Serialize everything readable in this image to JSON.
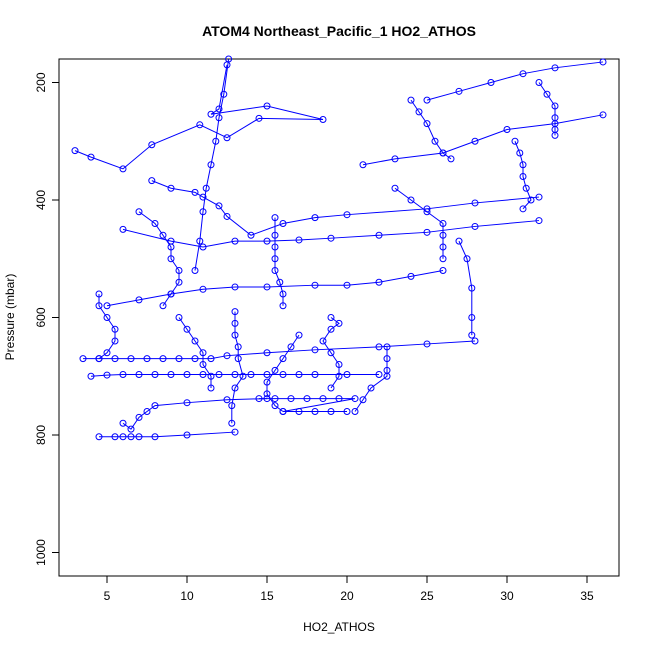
{
  "chart_data": {
    "type": "scatter",
    "title": "ATOM4 Northeast_Pacific_1 HO2_ATHOS",
    "xlabel": "HO2_ATHOS",
    "ylabel": "Pressure (mbar)",
    "xlim": [
      2,
      37
    ],
    "ylim": [
      1040,
      160
    ],
    "y_reversed": true,
    "xticks": [
      5,
      10,
      15,
      20,
      25,
      30,
      35
    ],
    "yticks": [
      200,
      400,
      600,
      800,
      1000
    ],
    "grid": false,
    "legend": "none",
    "color": "#0000ff",
    "marker": "open-circle",
    "series": [
      {
        "values": [
          [
            3.0,
            316
          ],
          [
            4.0,
            327
          ],
          [
            6.0,
            347
          ],
          [
            7.8,
            306
          ],
          [
            10.8,
            272
          ],
          [
            12.5,
            294
          ],
          [
            14.5,
            261
          ],
          [
            18.5,
            263
          ],
          [
            15.0,
            240
          ],
          [
            11.5,
            254
          ],
          [
            12.0,
            245
          ],
          [
            12.5,
            170
          ]
        ]
      },
      {
        "values": [
          [
            10.5,
            520
          ],
          [
            10.8,
            470
          ],
          [
            11.0,
            420
          ],
          [
            11.2,
            380
          ],
          [
            11.5,
            340
          ],
          [
            11.8,
            300
          ],
          [
            12.0,
            260
          ],
          [
            12.3,
            220
          ],
          [
            12.6,
            160
          ]
        ]
      },
      {
        "values": [
          [
            7.8,
            367
          ],
          [
            9.0,
            380
          ],
          [
            10.5,
            387
          ],
          [
            11.0,
            395
          ],
          [
            12.0,
            410
          ],
          [
            12.5,
            428
          ],
          [
            14.0,
            460
          ],
          [
            16.0,
            440
          ],
          [
            18.0,
            430
          ],
          [
            20.0,
            425
          ],
          [
            25.0,
            415
          ],
          [
            28.0,
            405
          ],
          [
            32.0,
            395
          ]
        ]
      },
      {
        "values": [
          [
            4.0,
            700
          ],
          [
            5.0,
            698
          ],
          [
            6.0,
            697
          ],
          [
            7.0,
            697
          ],
          [
            8.0,
            697
          ],
          [
            9.0,
            697
          ],
          [
            10.0,
            697
          ],
          [
            11.0,
            697
          ],
          [
            12.0,
            697
          ],
          [
            13.0,
            697
          ],
          [
            14.0,
            697
          ],
          [
            15.0,
            697
          ],
          [
            16.0,
            697
          ],
          [
            17.0,
            697
          ],
          [
            18.0,
            697
          ],
          [
            20.0,
            697
          ],
          [
            22.0,
            697
          ]
        ]
      },
      {
        "values": [
          [
            3.5,
            670
          ],
          [
            4.5,
            670
          ],
          [
            5.5,
            670
          ],
          [
            6.5,
            670
          ],
          [
            7.5,
            670
          ],
          [
            8.5,
            670
          ],
          [
            9.5,
            670
          ],
          [
            10.5,
            670
          ],
          [
            11.5,
            670
          ],
          [
            12.5,
            665
          ],
          [
            15.0,
            660
          ],
          [
            18.0,
            655
          ],
          [
            22.0,
            650
          ],
          [
            25.0,
            645
          ],
          [
            28.0,
            640
          ]
        ]
      },
      {
        "values": [
          [
            14.5,
            738
          ],
          [
            15.5,
            738
          ],
          [
            16.5,
            738
          ],
          [
            17.5,
            738
          ],
          [
            18.5,
            738
          ],
          [
            19.5,
            738
          ],
          [
            20.5,
            738
          ],
          [
            16.0,
            760
          ],
          [
            17.0,
            760
          ],
          [
            18.0,
            760
          ],
          [
            19.0,
            760
          ],
          [
            20.0,
            760
          ]
        ]
      },
      {
        "values": [
          [
            4.5,
            803
          ],
          [
            5.5,
            803
          ],
          [
            6.0,
            803
          ],
          [
            6.5,
            803
          ],
          [
            7.0,
            803
          ],
          [
            8.0,
            803
          ],
          [
            10.0,
            800
          ],
          [
            13.0,
            795
          ]
        ]
      },
      {
        "values": [
          [
            5.0,
            580
          ],
          [
            7.0,
            570
          ],
          [
            9.0,
            560
          ],
          [
            11.0,
            552
          ],
          [
            13.0,
            548
          ],
          [
            15.0,
            548
          ],
          [
            18.0,
            545
          ],
          [
            20.0,
            545
          ],
          [
            22.0,
            540
          ],
          [
            24.0,
            530
          ],
          [
            26.0,
            520
          ]
        ]
      },
      {
        "values": [
          [
            6.0,
            450
          ],
          [
            9.0,
            470
          ],
          [
            11.0,
            480
          ],
          [
            13.0,
            470
          ],
          [
            15.0,
            470
          ],
          [
            17.0,
            468
          ],
          [
            19.0,
            465
          ],
          [
            22.0,
            460
          ],
          [
            25.0,
            455
          ],
          [
            28.0,
            445
          ],
          [
            32.0,
            435
          ]
        ]
      },
      {
        "values": [
          [
            21.0,
            340
          ],
          [
            23.0,
            330
          ],
          [
            26.0,
            320
          ],
          [
            28.0,
            300
          ],
          [
            30.0,
            280
          ],
          [
            33.0,
            270
          ],
          [
            36.0,
            255
          ]
        ]
      },
      {
        "values": [
          [
            25.0,
            230
          ],
          [
            27.0,
            215
          ],
          [
            29.0,
            200
          ],
          [
            31.0,
            185
          ],
          [
            33.0,
            175
          ],
          [
            36.0,
            165
          ]
        ]
      },
      {
        "values": [
          [
            27.0,
            470
          ],
          [
            27.5,
            500
          ],
          [
            27.8,
            550
          ],
          [
            27.8,
            600
          ],
          [
            27.8,
            630
          ]
        ]
      },
      {
        "values": [
          [
            22.5,
            650
          ],
          [
            22.5,
            670
          ],
          [
            22.5,
            690
          ],
          [
            22.5,
            700
          ],
          [
            21.5,
            720
          ],
          [
            21.0,
            740
          ],
          [
            20.5,
            760
          ]
        ]
      },
      {
        "values": [
          [
            17.0,
            630
          ],
          [
            16.5,
            650
          ],
          [
            16.0,
            670
          ],
          [
            15.5,
            690
          ],
          [
            15.0,
            710
          ],
          [
            15.0,
            730
          ],
          [
            15.5,
            750
          ],
          [
            16.0,
            760
          ]
        ]
      },
      {
        "values": [
          [
            9.5,
            600
          ],
          [
            10.0,
            620
          ],
          [
            10.5,
            640
          ],
          [
            11.0,
            660
          ],
          [
            11.0,
            680
          ],
          [
            11.5,
            700
          ],
          [
            11.5,
            720
          ]
        ]
      },
      {
        "values": [
          [
            13.0,
            590
          ],
          [
            13.0,
            610
          ],
          [
            13.0,
            630
          ],
          [
            13.2,
            650
          ],
          [
            13.2,
            670
          ],
          [
            13.5,
            700
          ],
          [
            13.0,
            720
          ],
          [
            12.8,
            750
          ],
          [
            12.8,
            780
          ]
        ]
      },
      {
        "values": [
          [
            4.5,
            560
          ],
          [
            4.5,
            580
          ],
          [
            5.0,
            600
          ],
          [
            5.5,
            620
          ],
          [
            5.5,
            640
          ],
          [
            5.0,
            660
          ],
          [
            4.5,
            670
          ]
        ]
      },
      {
        "values": [
          [
            7.0,
            420
          ],
          [
            8.0,
            440
          ],
          [
            8.5,
            460
          ],
          [
            9.0,
            480
          ],
          [
            9.0,
            500
          ],
          [
            9.5,
            520
          ],
          [
            9.5,
            540
          ],
          [
            9.0,
            560
          ],
          [
            8.5,
            580
          ]
        ]
      },
      {
        "values": [
          [
            19.0,
            600
          ],
          [
            19.5,
            610
          ],
          [
            19.0,
            620
          ],
          [
            18.5,
            640
          ],
          [
            19.0,
            660
          ],
          [
            19.5,
            680
          ],
          [
            19.5,
            700
          ],
          [
            19.0,
            720
          ]
        ]
      },
      {
        "values": [
          [
            23.0,
            380
          ],
          [
            24.0,
            400
          ],
          [
            25.0,
            420
          ],
          [
            26.0,
            440
          ],
          [
            26.0,
            460
          ],
          [
            26.0,
            480
          ],
          [
            26.0,
            500
          ]
        ]
      },
      {
        "values": [
          [
            30.5,
            300
          ],
          [
            30.8,
            320
          ],
          [
            31.0,
            340
          ],
          [
            31.0,
            360
          ],
          [
            31.2,
            380
          ],
          [
            31.5,
            400
          ],
          [
            31.0,
            415
          ]
        ]
      },
      {
        "values": [
          [
            6.0,
            780
          ],
          [
            6.5,
            790
          ],
          [
            7.0,
            770
          ],
          [
            7.5,
            760
          ],
          [
            8.0,
            750
          ],
          [
            10.0,
            745
          ],
          [
            12.5,
            740
          ],
          [
            15.0,
            738
          ]
        ]
      },
      {
        "values": [
          [
            15.5,
            430
          ],
          [
            15.5,
            460
          ],
          [
            15.5,
            480
          ],
          [
            15.5,
            500
          ],
          [
            15.5,
            520
          ],
          [
            15.8,
            540
          ],
          [
            16.0,
            560
          ],
          [
            16.0,
            580
          ]
        ]
      },
      {
        "values": [
          [
            24.0,
            230
          ],
          [
            24.5,
            250
          ],
          [
            25.0,
            270
          ],
          [
            25.5,
            300
          ],
          [
            26.0,
            320
          ],
          [
            26.5,
            330
          ]
        ]
      },
      {
        "values": [
          [
            32.0,
            200
          ],
          [
            32.5,
            220
          ],
          [
            33.0,
            240
          ],
          [
            33.0,
            260
          ],
          [
            33.0,
            280
          ],
          [
            33.0,
            290
          ]
        ]
      }
    ]
  }
}
